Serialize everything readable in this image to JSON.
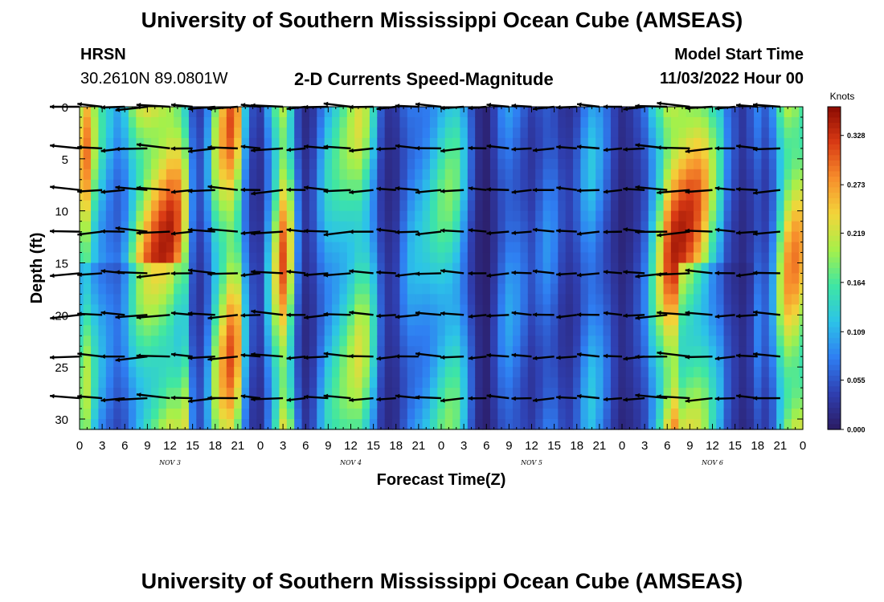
{
  "header": {
    "title": "University of Southern Mississippi Ocean Cube (AMSEAS)",
    "station": "HRSN",
    "coords": "30.2610N  89.0801W",
    "chart_title": "2-D Currents Speed-Magnitude",
    "model_label": "Model Start Time",
    "model_time": "11/03/2022 Hour 00"
  },
  "footer": {
    "title": "University of Southern Mississippi Ocean Cube (AMSEAS)"
  },
  "colors": {
    "scale": [
      "#2b1b63",
      "#2f3fb0",
      "#2f7ef2",
      "#2cc3e8",
      "#3ee6a4",
      "#a6f04a",
      "#f3d53a",
      "#f78e2c",
      "#d93a14",
      "#8a0a02"
    ]
  },
  "chart_data": {
    "type": "heatmap",
    "title": "2-D Currents Speed-Magnitude",
    "xlabel": "Forecast Time(Z)",
    "ylabel": "Depth (ft)",
    "x_ticks": [
      "0",
      "3",
      "6",
      "9",
      "12",
      "15",
      "18",
      "21",
      "0",
      "3",
      "6",
      "9",
      "12",
      "15",
      "18",
      "21",
      "0",
      "3",
      "6",
      "9",
      "12",
      "15",
      "18",
      "21",
      "0",
      "3",
      "6",
      "9",
      "12",
      "15",
      "18",
      "21",
      "0"
    ],
    "x_range_hours": [
      0,
      96
    ],
    "day_labels": [
      {
        "label": "NOV 3",
        "hour": 12
      },
      {
        "label": "NOV 4",
        "hour": 36
      },
      {
        "label": "NOV 5",
        "hour": 60
      },
      {
        "label": "NOV 6",
        "hour": 84
      }
    ],
    "y_ticks": [
      0,
      5,
      10,
      15,
      20,
      25,
      30
    ],
    "ylim": [
      0,
      31
    ],
    "colorbar": {
      "label": "Knots",
      "ticks": [
        0.328,
        0.273,
        0.219,
        0.164,
        0.109,
        0.055,
        0.0
      ],
      "tick_labels": [
        "0.328",
        "0.273",
        "0.219",
        "0.164",
        "0.109",
        "0.055",
        "0.000"
      ],
      "range": [
        0,
        0.36
      ]
    },
    "speed_profile_by_hour": [
      {
        "h": 0,
        "s": 0.25
      },
      {
        "h": 1,
        "s": 0.28
      },
      {
        "h": 2,
        "s": 0.2
      },
      {
        "h": 3,
        "s": 0.15
      },
      {
        "h": 4,
        "s": 0.12
      },
      {
        "h": 5,
        "s": 0.1
      },
      {
        "h": 6,
        "s": 0.13
      },
      {
        "h": 7,
        "s": 0.2
      },
      {
        "h": 8,
        "s": 0.26
      },
      {
        "h": 9,
        "s": 0.3
      },
      {
        "h": 10,
        "s": 0.32
      },
      {
        "h": 11,
        "s": 0.33
      },
      {
        "h": 12,
        "s": 0.33
      },
      {
        "h": 13,
        "s": 0.3
      },
      {
        "h": 14,
        "s": 0.22
      },
      {
        "h": 15,
        "s": 0.08
      },
      {
        "h": 16,
        "s": 0.05
      },
      {
        "h": 17,
        "s": 0.1
      },
      {
        "h": 18,
        "s": 0.2
      },
      {
        "h": 19,
        "s": 0.26
      },
      {
        "h": 20,
        "s": 0.3
      },
      {
        "h": 21,
        "s": 0.26
      },
      {
        "h": 22,
        "s": 0.12
      },
      {
        "h": 23,
        "s": 0.05
      },
      {
        "h": 24,
        "s": 0.04
      },
      {
        "h": 25,
        "s": 0.12
      },
      {
        "h": 26,
        "s": 0.22
      },
      {
        "h": 27,
        "s": 0.3
      },
      {
        "h": 28,
        "s": 0.22
      },
      {
        "h": 29,
        "s": 0.08
      },
      {
        "h": 30,
        "s": 0.03
      },
      {
        "h": 31,
        "s": 0.05
      },
      {
        "h": 32,
        "s": 0.1
      },
      {
        "h": 33,
        "s": 0.14
      },
      {
        "h": 34,
        "s": 0.16
      },
      {
        "h": 35,
        "s": 0.18
      },
      {
        "h": 36,
        "s": 0.2
      },
      {
        "h": 37,
        "s": 0.22
      },
      {
        "h": 38,
        "s": 0.2
      },
      {
        "h": 39,
        "s": 0.14
      },
      {
        "h": 40,
        "s": 0.06
      },
      {
        "h": 41,
        "s": 0.03
      },
      {
        "h": 42,
        "s": 0.04
      },
      {
        "h": 43,
        "s": 0.08
      },
      {
        "h": 44,
        "s": 0.11
      },
      {
        "h": 45,
        "s": 0.12
      },
      {
        "h": 46,
        "s": 0.13
      },
      {
        "h": 47,
        "s": 0.15
      },
      {
        "h": 48,
        "s": 0.17
      },
      {
        "h": 49,
        "s": 0.18
      },
      {
        "h": 50,
        "s": 0.17
      },
      {
        "h": 51,
        "s": 0.12
      },
      {
        "h": 52,
        "s": 0.06
      },
      {
        "h": 53,
        "s": 0.02
      },
      {
        "h": 54,
        "s": 0.01
      },
      {
        "h": 55,
        "s": 0.04
      },
      {
        "h": 56,
        "s": 0.08
      },
      {
        "h": 57,
        "s": 0.1
      },
      {
        "h": 58,
        "s": 0.09
      },
      {
        "h": 59,
        "s": 0.07
      },
      {
        "h": 60,
        "s": 0.05
      },
      {
        "h": 61,
        "s": 0.07
      },
      {
        "h": 62,
        "s": 0.09
      },
      {
        "h": 63,
        "s": 0.08
      },
      {
        "h": 64,
        "s": 0.05
      },
      {
        "h": 65,
        "s": 0.04
      },
      {
        "h": 66,
        "s": 0.06
      },
      {
        "h": 67,
        "s": 0.1
      },
      {
        "h": 68,
        "s": 0.12
      },
      {
        "h": 69,
        "s": 0.1
      },
      {
        "h": 70,
        "s": 0.07
      },
      {
        "h": 71,
        "s": 0.04
      },
      {
        "h": 72,
        "s": 0.02
      },
      {
        "h": 73,
        "s": 0.03
      },
      {
        "h": 74,
        "s": 0.05
      },
      {
        "h": 75,
        "s": 0.08
      },
      {
        "h": 76,
        "s": 0.15
      },
      {
        "h": 77,
        "s": 0.22
      },
      {
        "h": 78,
        "s": 0.3
      },
      {
        "h": 79,
        "s": 0.33
      },
      {
        "h": 80,
        "s": 0.33
      },
      {
        "h": 81,
        "s": 0.32
      },
      {
        "h": 82,
        "s": 0.3
      },
      {
        "h": 83,
        "s": 0.26
      },
      {
        "h": 84,
        "s": 0.2
      },
      {
        "h": 85,
        "s": 0.15
      },
      {
        "h": 86,
        "s": 0.08
      },
      {
        "h": 87,
        "s": 0.05
      },
      {
        "h": 88,
        "s": 0.03
      },
      {
        "h": 89,
        "s": 0.05
      },
      {
        "h": 90,
        "s": 0.08
      },
      {
        "h": 91,
        "s": 0.06
      },
      {
        "h": 92,
        "s": 0.1
      },
      {
        "h": 93,
        "s": 0.2
      },
      {
        "h": 94,
        "s": 0.27
      },
      {
        "h": 95,
        "s": 0.28
      },
      {
        "h": 96,
        "s": 0.26
      }
    ],
    "vector_depths_ft": [
      0,
      4,
      8,
      12,
      16,
      20,
      24,
      28
    ],
    "vector_hours": [
      0,
      3,
      6,
      9,
      12,
      15,
      18,
      21,
      24,
      27,
      30,
      33,
      36,
      39,
      42,
      45,
      48,
      51,
      54,
      57,
      60,
      63,
      66,
      69,
      72,
      75,
      78,
      81,
      84,
      87,
      90,
      93,
      96
    ],
    "vector_direction_note": "predominantly westward (toward -x)"
  }
}
